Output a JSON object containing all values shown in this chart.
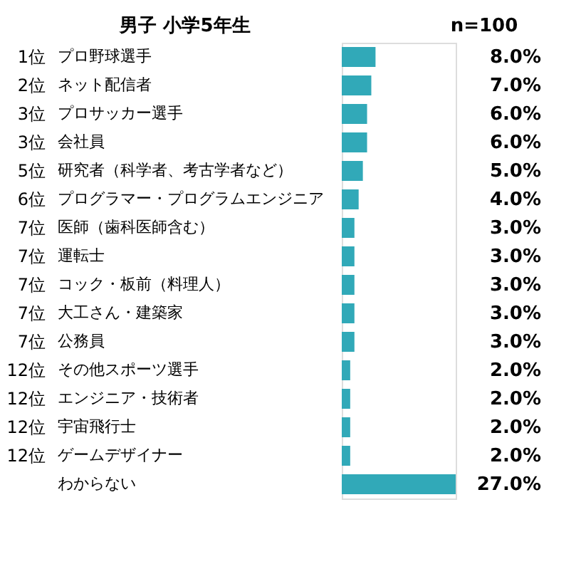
{
  "chart_data": {
    "type": "bar",
    "orientation": "horizontal",
    "title": "男子  小学5年生",
    "subtitle": "n=100",
    "categories": [
      "プロ野球選手",
      "ネット配信者",
      "プロサッカー選手",
      "会社員",
      "研究者（科学者、考古学者など）",
      "プログラマー・プログラムエンジニア",
      "医師（歯科医師含む）",
      "運転士",
      "コック・板前（料理人）",
      "大工さん・建築家",
      "公務員",
      "その他スポーツ選手",
      "エンジニア・技術者",
      "宇宙飛行士",
      "ゲームデザイナー",
      "わからない"
    ],
    "values": [
      8,
      7,
      6,
      6,
      5,
      4,
      3,
      3,
      3,
      3,
      3,
      2,
      2,
      2,
      2,
      27
    ],
    "value_labels": [
      "8.0%",
      "7.0%",
      "6.0%",
      "6.0%",
      "5.0%",
      "4.0%",
      "3.0%",
      "3.0%",
      "3.0%",
      "3.0%",
      "3.0%",
      "2.0%",
      "2.0%",
      "2.0%",
      "2.0%",
      "27.0%"
    ],
    "color": "#31a9b8",
    "annotations": [
      "1位",
      "2位",
      "3位",
      "3位",
      "5位",
      "6位",
      "7位",
      "7位",
      "7位",
      "7位",
      "7位",
      "12位",
      "12位",
      "12位",
      "12位"
    ]
  }
}
